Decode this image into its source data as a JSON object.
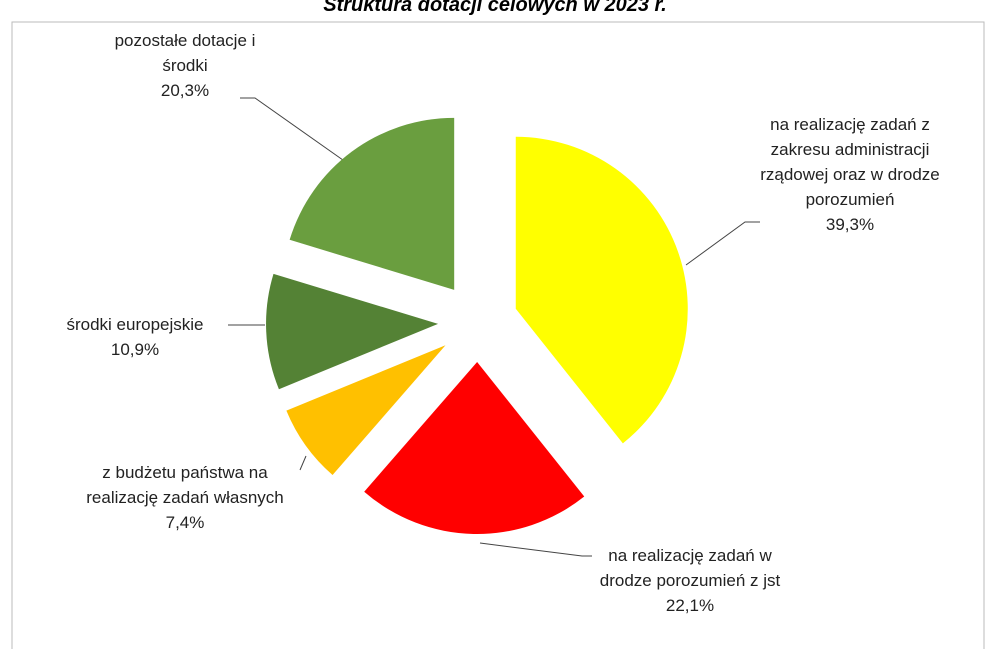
{
  "chart_data": {
    "type": "pie",
    "title": "Struktura dotacji celowych w 2023 r.",
    "categories": [
      "na realizację zadań z zakresu administracji rządowej oraz w drodze porozumień",
      "na realizację zadań w drodze porozumień z jst",
      "z budżetu państwa na realizację zadań własnych",
      "środki europejskie",
      "pozostałe dotacje i środki"
    ],
    "values": [
      39.3,
      22.1,
      7.4,
      10.9,
      20.3
    ],
    "value_labels": [
      "39,3%",
      "22,1%",
      "7,4%",
      "10,9%",
      "20,3%"
    ],
    "colors": [
      "#ffff00",
      "#ff0000",
      "#ffc000",
      "#548235",
      "#6a9e3f"
    ]
  }
}
